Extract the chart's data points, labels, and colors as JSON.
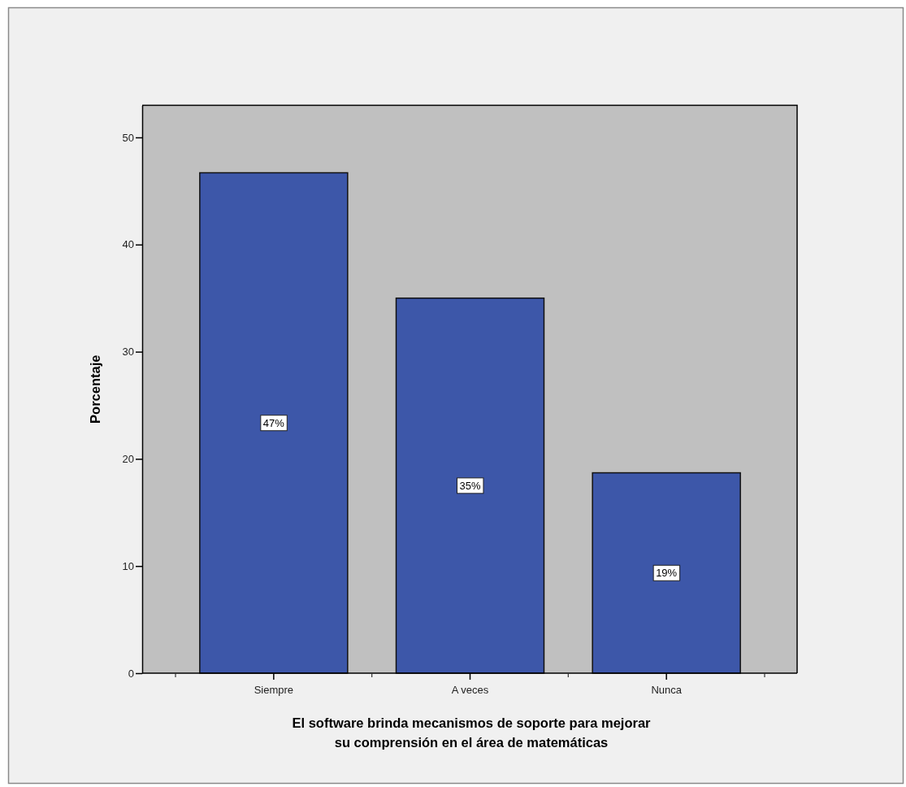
{
  "chart_data": {
    "type": "bar",
    "xlabel": "El software brinda mecanismos de soporte para mejorar\nsu comprensión en el área de matemáticas",
    "ylabel": "Porcentaje",
    "categories": [
      "Siempre",
      "A veces",
      "Nunca"
    ],
    "values": [
      46.7,
      35.0,
      18.7
    ],
    "value_labels": [
      "47%",
      "35%",
      "19%"
    ],
    "color": "#3d57a9",
    "ylim": [
      0,
      53
    ],
    "yticks": [
      0,
      10,
      20,
      30,
      40,
      50
    ]
  }
}
